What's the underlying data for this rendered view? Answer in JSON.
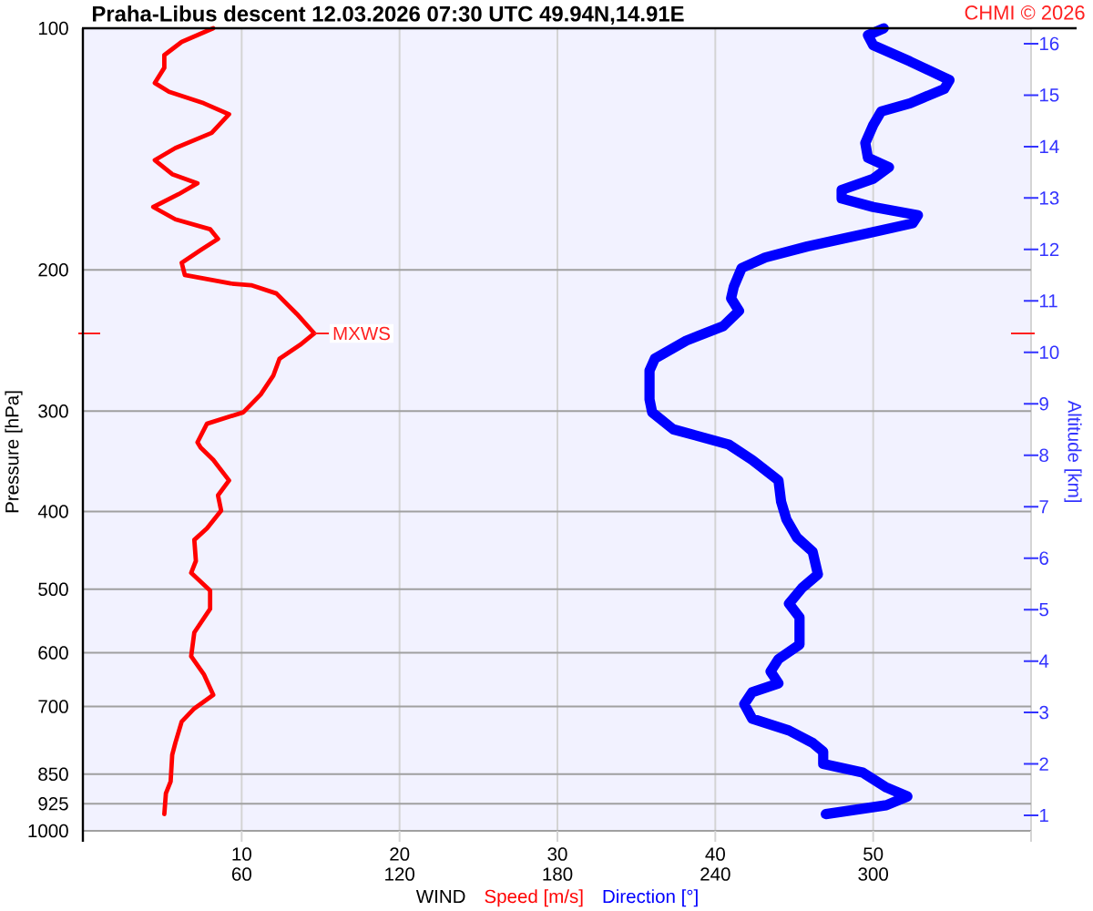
{
  "chart_data": {
    "type": "line",
    "title": "Praha-Libus descent 12.03.2026 07:30 UTC 49.94N,14.91E",
    "xlabel": "WIND",
    "ylabel": "Pressure [hPa]",
    "y2label": "Altitude [km]",
    "xlim": [
      0,
      60
    ],
    "xticks": [
      10,
      20,
      30,
      40,
      50,
      {
        "value": 60,
        "label": null
      }
    ],
    "x2lim": [
      0,
      360
    ],
    "x2ticks": [
      60,
      120,
      180,
      240,
      300
    ],
    "ylim": [
      1000,
      100
    ],
    "yticks": [
      100,
      200,
      300,
      400,
      500,
      600,
      700,
      850,
      925,
      1000
    ],
    "y2lim": [
      0.7,
      16.3
    ],
    "y2ticks": [
      1,
      2,
      3,
      4,
      5,
      6,
      7,
      8,
      9,
      10,
      11,
      12,
      13,
      14,
      15,
      16
    ],
    "log": "y",
    "grid": true,
    "series": [
      {
        "name": "Speed [m/s]",
        "color": "#ff0000",
        "x": [
          8.2,
          6.2,
          5.1,
          5.1,
          4.5,
          5.4,
          7.6,
          9.2,
          8.1,
          5.8,
          4.5,
          5.6,
          7.2,
          6.0,
          4.4,
          5.8,
          8.0,
          8.5,
          7.4,
          6.2,
          6.4,
          9.3,
          10.6,
          12.2,
          13.5,
          14.6,
          13.7,
          12.4,
          12.0,
          11.2,
          10.1,
          7.8,
          7.2,
          7.4,
          8.2,
          9.2,
          8.5,
          8.7,
          7.8,
          7.0,
          7.1,
          6.8,
          8.0,
          8.0,
          7.0,
          6.8,
          7.6,
          8.2,
          7.0,
          6.2,
          5.8,
          5.6,
          5.5,
          5.2,
          5.1
        ],
        "values": [
          100,
          104,
          108,
          112,
          117,
          120,
          124,
          128,
          135,
          141,
          146,
          152,
          156,
          161,
          167,
          173,
          178,
          183,
          189,
          196,
          203,
          208,
          209,
          214,
          227,
          240,
          248,
          258,
          271,
          286,
          301,
          311,
          328,
          333,
          345,
          366,
          382,
          399,
          420,
          434,
          461,
          477,
          502,
          529,
          566,
          606,
          638,
          677,
          704,
          731,
          777,
          804,
          868,
          898,
          953
        ]
      },
      {
        "name": "Direction [°]",
        "color": "#0000ff",
        "axis": "x2",
        "x": [
          304,
          298,
          300,
          314,
          329,
          327,
          314,
          303,
          300,
          297,
          298,
          306,
          300,
          288,
          288,
          300,
          317,
          315,
          298,
          275,
          259,
          250,
          247,
          246,
          249,
          243,
          229,
          217,
          215,
          215,
          216,
          224,
          245,
          254,
          264,
          265,
          267,
          271,
          277,
          279,
          273,
          268,
          272,
          272,
          264,
          261,
          264,
          254,
          251,
          254,
          268,
          277,
          281,
          281,
          296,
          305,
          313,
          305,
          282
        ],
        "values": [
          100,
          102,
          105,
          110,
          116,
          119,
          124,
          127,
          132,
          139,
          145,
          149,
          154,
          159,
          163,
          167,
          171,
          175,
          180,
          187,
          193,
          199,
          210,
          217,
          225,
          235,
          245,
          258,
          267,
          290,
          301,
          316,
          330,
          345,
          366,
          389,
          409,
          431,
          449,
          479,
          498,
          521,
          542,
          586,
          611,
          633,
          655,
          672,
          695,
          725,
          750,
          777,
          797,
          825,
          846,
          883,
          906,
          929,
          953
        ]
      }
    ],
    "annotations": [
      {
        "text": "MXWS",
        "x": 14.6,
        "y": 240
      },
      "CHMI © 2026"
    ]
  }
}
